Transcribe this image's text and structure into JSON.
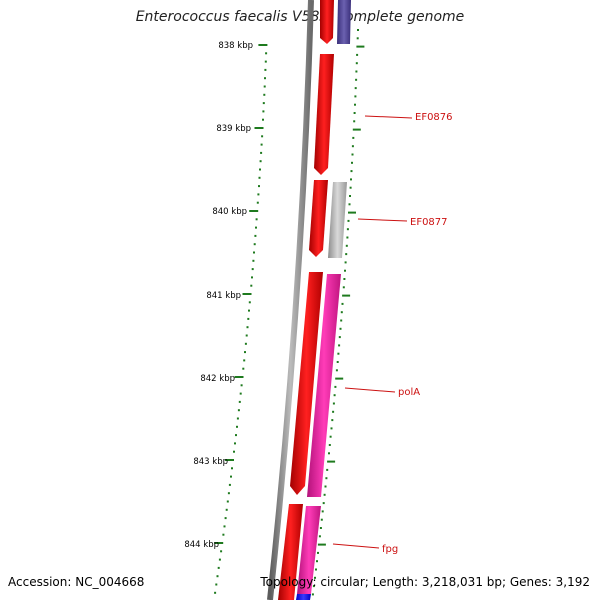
{
  "title": "Enterococcus faecalis V583, complete genome",
  "accession_text": "Accession: NC_004668",
  "summary_text": "Topology: circular; Length: 3,218,031 bp; Genes: 3,192",
  "ticks": [
    {
      "label": "838 kbp"
    },
    {
      "label": "839 kbp"
    },
    {
      "label": "840 kbp"
    },
    {
      "label": "841 kbp"
    },
    {
      "label": "842 kbp"
    },
    {
      "label": "843 kbp"
    },
    {
      "label": "844 kbp"
    }
  ],
  "gene_labels": [
    "EF0876",
    "EF0877",
    "polA",
    "fpg"
  ],
  "colors": {
    "backbone": "#7a7a7a",
    "forward_gene": "#ff1a1a",
    "hypothetical": "#b5b5b5",
    "polA": "#ee2fa6",
    "fpg": "#ee2fa6",
    "top_block": "#4a3f8f",
    "bottom_block": "#1a1aff",
    "tick": "#1e7a1e",
    "label": "#cc1111"
  }
}
